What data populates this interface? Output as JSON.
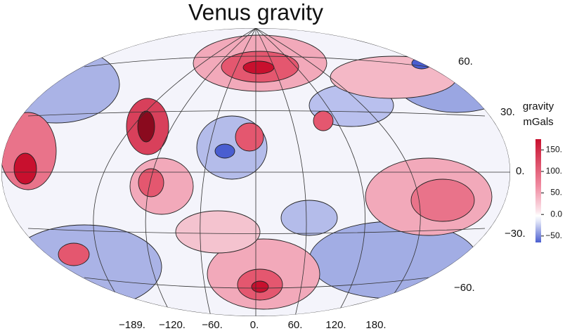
{
  "title": "Venus gravity",
  "latitude_labels": [
    "60.",
    "30.",
    "0.",
    "−30.",
    "−60."
  ],
  "longitude_labels": [
    "−189.",
    "−120.",
    "−60.",
    "0.",
    "60.",
    "120.",
    "180."
  ],
  "colorbar": {
    "title": [
      "gravity",
      "mGals"
    ],
    "ylim": [
      -65,
      175
    ],
    "ticks": [
      {
        "value": 150,
        "label": "150."
      },
      {
        "value": 100,
        "label": "100."
      },
      {
        "value": 50,
        "label": "50."
      },
      {
        "value": 0,
        "label": "0.0"
      },
      {
        "value": -50,
        "label": "−50."
      }
    ]
  }
}
